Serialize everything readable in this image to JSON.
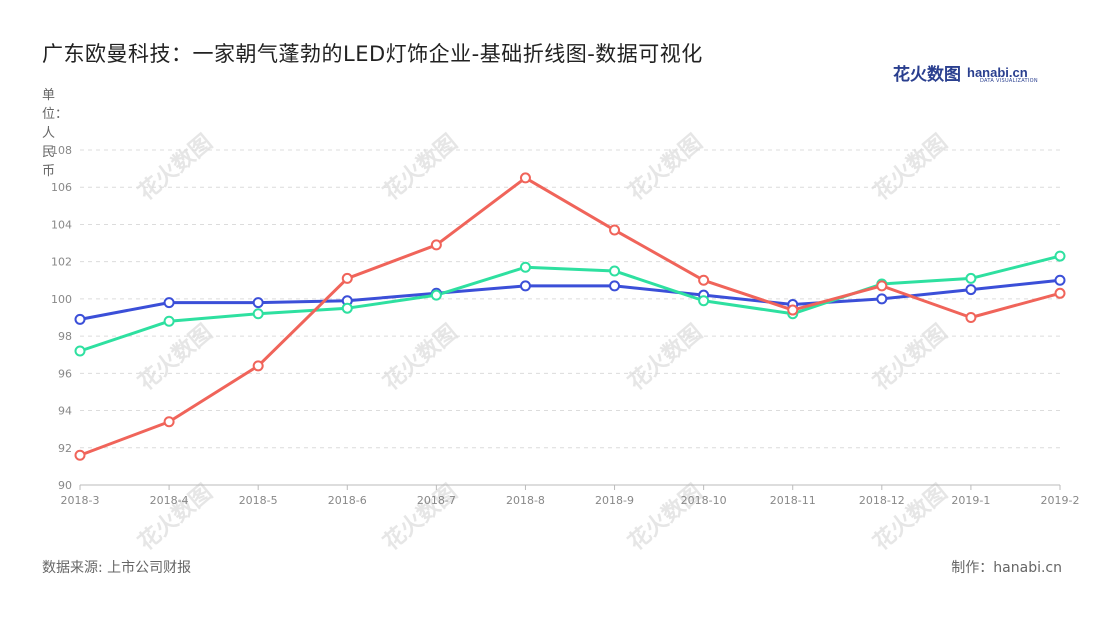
{
  "header": {
    "title": "广东欧曼科技：一家朝气蓬勃的LED灯饰企业-基础折线图-数据可视化",
    "logo_cn": "花火数图",
    "logo_en": "hanabi.cn",
    "logo_sub": "DATA VISUALIZATION"
  },
  "footer": {
    "source": "数据来源: 上市公司财报",
    "maker": "制作：hanabi.cn"
  },
  "watermark": {
    "text": "花火数图"
  },
  "chart_data": {
    "type": "line",
    "title": "广东欧曼科技：一家朝气蓬勃的LED灯饰企业-基础折线图-数据可视化",
    "ylabel": "单位：人民币",
    "xlabel": "",
    "ylim": [
      90,
      108
    ],
    "yticks": [
      90,
      92,
      94,
      96,
      98,
      100,
      102,
      104,
      106,
      108
    ],
    "grid": true,
    "categories": [
      "2018-3",
      "2018-4",
      "2018-5",
      "2018-6",
      "2018-7",
      "2018-8",
      "2018-9",
      "2018-10",
      "2018-11",
      "2018-12",
      "2019-1",
      "2019-2"
    ],
    "series": [
      {
        "color": "#3b4fd8",
        "values": [
          98.9,
          99.8,
          99.8,
          99.9,
          100.3,
          100.7,
          100.7,
          100.2,
          99.7,
          100.0,
          100.5,
          101.0
        ]
      },
      {
        "color": "#2ee0a0",
        "values": [
          97.2,
          98.8,
          99.2,
          99.5,
          100.2,
          101.7,
          101.5,
          99.9,
          99.2,
          100.8,
          101.1,
          102.3
        ]
      },
      {
        "color": "#f0645a",
        "values": [
          91.6,
          93.4,
          96.4,
          101.1,
          102.9,
          106.5,
          103.7,
          101.0,
          99.4,
          100.7,
          99.0,
          100.3
        ]
      }
    ]
  }
}
